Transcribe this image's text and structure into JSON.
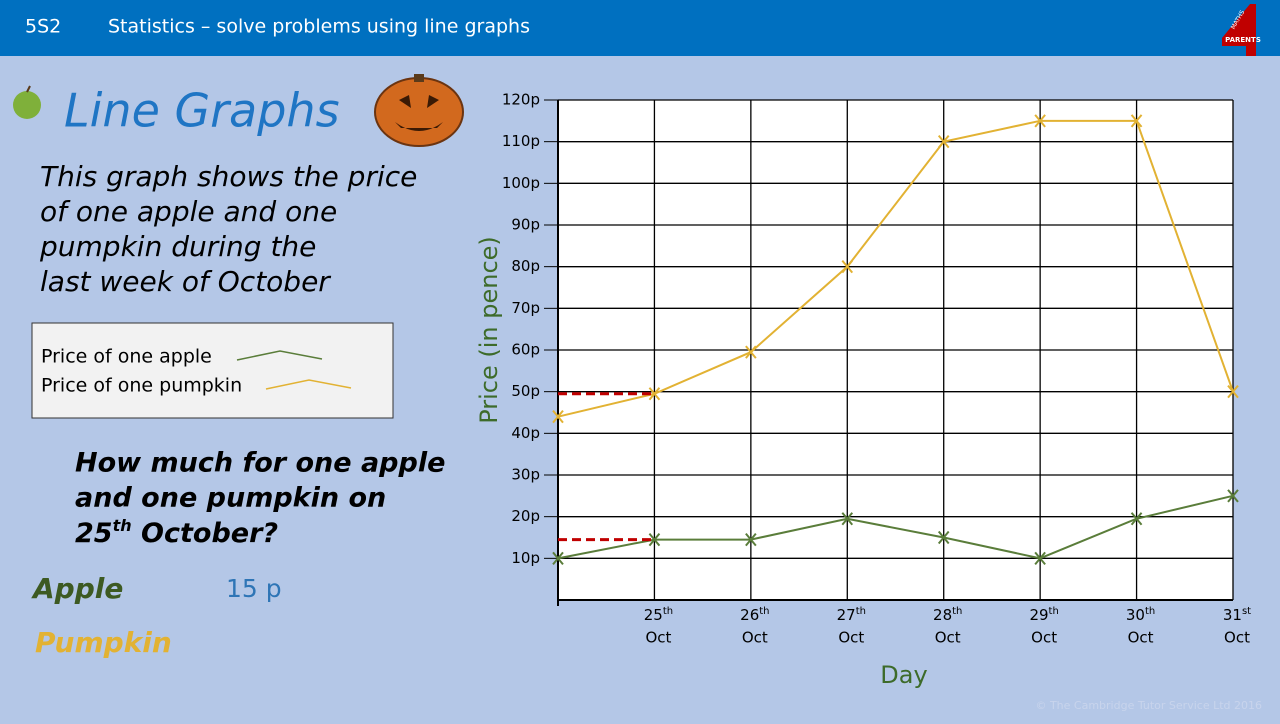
{
  "header": {
    "code": "5S2",
    "title": "Statistics – solve problems using line graphs",
    "logo_top": "MATHS",
    "logo_bottom": "PARENTS"
  },
  "lesson": {
    "title": "Line Graphs",
    "description": [
      "This graph shows the price",
      "of one apple and one",
      "pumpkin during the",
      "last week of October"
    ],
    "question": {
      "lines": [
        "How much for one apple",
        "and one pumpkin on"
      ],
      "day": "25",
      "suffix": "th",
      "rest": " October?"
    },
    "answers": [
      {
        "label": "Apple",
        "value": "15 p"
      },
      {
        "label": "Pumpkin"
      }
    ]
  },
  "footer": "© The Cambridge Tutor Service Ltd 2016",
  "chart_data": {
    "type": "line",
    "x_label": "Day",
    "y_label": "Price (in pence)",
    "categories": [
      null,
      "25",
      "26",
      "27",
      "28",
      "29",
      "30",
      "31"
    ],
    "category_suffixes": [
      null,
      "th",
      "th",
      "th",
      "th",
      "th",
      "th",
      "st"
    ],
    "category_months": [
      null,
      "Oct",
      "Oct",
      "Oct",
      "Oct",
      "Oct",
      "Oct",
      "Oct"
    ],
    "series": [
      {
        "name": "Price of one apple",
        "color": "#5a7d3a",
        "values": [
          10,
          14.5,
          14.5,
          19.5,
          15,
          10,
          19.5,
          25
        ]
      },
      {
        "name": "Price of one pumpkin",
        "color": "#e2b233",
        "values": [
          44,
          49.5,
          59.5,
          80,
          110,
          115,
          115,
          50
        ]
      }
    ],
    "highlight_index": 1,
    "highlight_color": "#c00000",
    "ylim": [
      0,
      120
    ],
    "yticks": [
      {
        "value": 10,
        "label": "10p"
      },
      {
        "value": 20,
        "label": "20p"
      },
      {
        "value": 30,
        "label": "30p"
      },
      {
        "value": 40,
        "label": "40p"
      },
      {
        "value": 50,
        "label": "50p"
      },
      {
        "value": 60,
        "label": "60p"
      },
      {
        "value": 70,
        "label": "70p"
      },
      {
        "value": 80,
        "label": "80p"
      },
      {
        "value": 90,
        "label": "90p"
      },
      {
        "value": 100,
        "label": "100p"
      },
      {
        "value": 110,
        "label": "110p"
      },
      {
        "value": 120,
        "label": "120p"
      }
    ],
    "grid": true
  }
}
